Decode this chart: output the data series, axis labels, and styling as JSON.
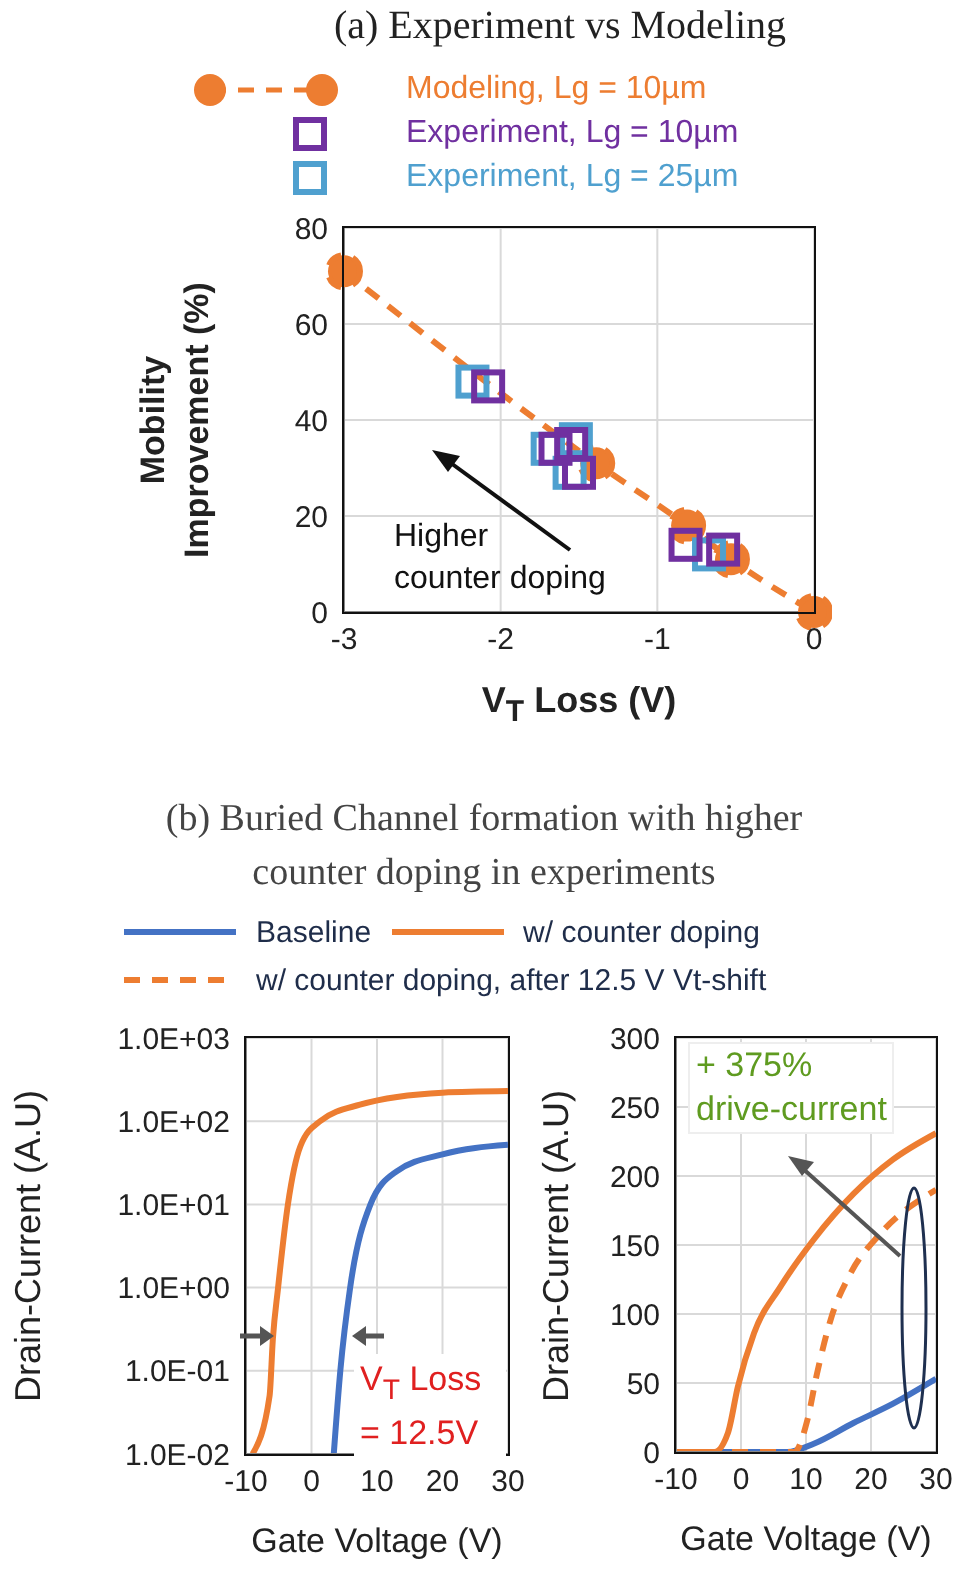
{
  "chart_data": [
    {
      "type": "scatter",
      "title": "(a) Experiment vs Modeling",
      "xlabel": "V$_{T}$ Loss (V)",
      "ylabel": "Mobility Improvement (%)",
      "xlim": [
        -3,
        0
      ],
      "xticks": [
        -3,
        -2,
        -1,
        0
      ],
      "ylim": [
        0,
        80
      ],
      "yticks": [
        0,
        20,
        40,
        60,
        80
      ],
      "grid": true,
      "legend": "top",
      "annotations": [
        "Higher counter doping"
      ],
      "series": [
        {
          "name": "Modeling, Lg = 10µm",
          "type": "line",
          "marker": "circle",
          "line_style": "dashed",
          "color": "#ed7d31",
          "x": [
            -3,
            -1.39,
            -0.81,
            -0.53,
            0
          ],
          "values": [
            71,
            31,
            18,
            11,
            0
          ]
        },
        {
          "name": "Experiment, Lg = 25µm",
          "type": "scatter",
          "marker": "square",
          "color": "#4fa0cf",
          "x": [
            -2.18,
            -1.7,
            -1.56,
            -1.52,
            -0.67
          ],
          "values": [
            48,
            34,
            29,
            36,
            12
          ]
        },
        {
          "name": "Experiment, Lg = 10µm",
          "type": "scatter",
          "marker": "square",
          "color": "#7030a0",
          "x": [
            -2.08,
            -1.65,
            -1.55,
            -1.5,
            -0.82,
            -0.58
          ],
          "values": [
            47,
            34,
            35,
            29,
            14,
            13
          ]
        }
      ]
    },
    {
      "type": "line",
      "title": "(b) Buried Channel formation with higher counter doping in experiments",
      "xlabel": "Gate Voltage (V)",
      "ylabel": "Drain-Current (A.U)",
      "log": "y",
      "xlim": [
        -10,
        30
      ],
      "xticks": [
        -10,
        0,
        10,
        20,
        30
      ],
      "ylim": [
        0.01,
        1000
      ],
      "yticks": [
        {
          "value": 0.01,
          "label": "1.0E-02"
        },
        {
          "value": 0.1,
          "label": "1.0E-01"
        },
        {
          "value": 1,
          "label": "1.0E+00"
        },
        {
          "value": 10,
          "label": "1.0E+01"
        },
        {
          "value": 100,
          "label": "1.0E+02"
        },
        {
          "value": 1000,
          "label": "1.0E+03"
        }
      ],
      "grid": true,
      "annotations": [
        "V$_{T}$ Loss = 12.5V"
      ],
      "series": [
        {
          "color": "#4472c4",
          "x": [
            3.4,
            4.4,
            5.9,
            9,
            13,
            20,
            30
          ],
          "values": [
            0.01,
            0.1,
            1,
            10,
            25,
            40,
            52
          ]
        },
        {
          "color": "#ed7d31",
          "x": [
            -9,
            -6.4,
            -5.9,
            -5.1,
            -3.6,
            -1.7,
            1.3,
            7.4,
            20,
            30
          ],
          "values": [
            0.01,
            0.05,
            0.24,
            1,
            10,
            50,
            100,
            158,
            220,
            230
          ]
        }
      ]
    },
    {
      "type": "line",
      "xlabel": "Gate Voltage (V)",
      "ylabel": "Drain-Current (A.U)",
      "xlim": [
        -10,
        30
      ],
      "xticks": [
        -10,
        0,
        10,
        20,
        30
      ],
      "ylim": [
        0,
        300
      ],
      "yticks": [
        0,
        50,
        100,
        150,
        200,
        250,
        300
      ],
      "grid": true,
      "legend": "top",
      "annotations": [
        "+ 375% drive-current"
      ],
      "series": [
        {
          "name": "Baseline",
          "color": "#4472c4",
          "x": [
            -10,
            7.1,
            11.2,
            17.3,
            23.4,
            30
          ],
          "values": [
            0,
            0,
            6,
            21,
            35,
            53
          ]
        },
        {
          "name": "w/ counter doping",
          "color": "#ed7d31",
          "x": [
            -10,
            -4.1,
            -2,
            -0.5,
            2,
            6.1,
            11.2,
            17.3,
            23.4,
            30
          ],
          "values": [
            0,
            0,
            14,
            47,
            86,
            120,
            154,
            187,
            212,
            231
          ]
        },
        {
          "name": "w/ counter doping, after 12.5 V Vt-shift",
          "color": "#ed7d31",
          "line_style": "dashed",
          "x": [
            -10,
            8.2,
            10.2,
            11.7,
            13.8,
            16.8,
            21.4,
            30
          ],
          "values": [
            0,
            0,
            23,
            57,
            96,
            129,
            158,
            190
          ]
        }
      ]
    }
  ]
}
